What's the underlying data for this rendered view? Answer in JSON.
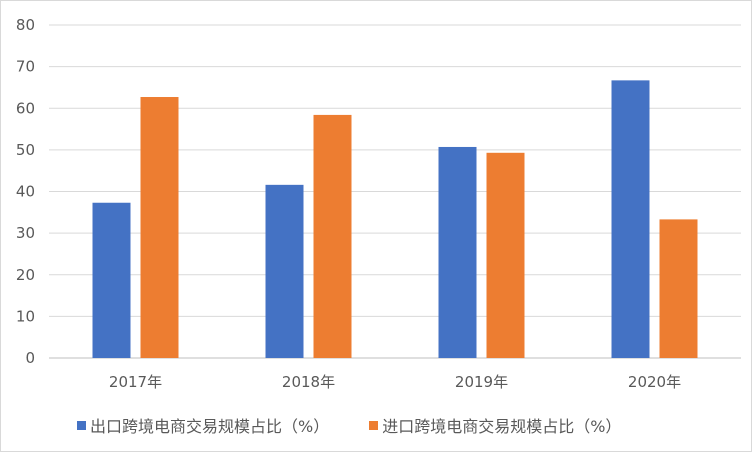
{
  "chart_data": {
    "type": "bar",
    "title": "",
    "xlabel": "",
    "ylabel": "",
    "categories": [
      "2017年",
      "2018年",
      "2019年",
      "2020年"
    ],
    "series": [
      {
        "name": "出口跨境电商交易规模占比（%）",
        "values": [
          37.3,
          41.6,
          50.7,
          66.7
        ],
        "color": "#4472C4"
      },
      {
        "name": "进口跨境电商交易规模占比（%）",
        "values": [
          62.7,
          58.4,
          49.3,
          33.3
        ],
        "color": "#ED7D31"
      }
    ],
    "ylim": [
      0,
      80
    ],
    "yticks": [
      0,
      10,
      20,
      30,
      40,
      50,
      60,
      70,
      80
    ],
    "grid": true,
    "legend_position": "bottom"
  }
}
